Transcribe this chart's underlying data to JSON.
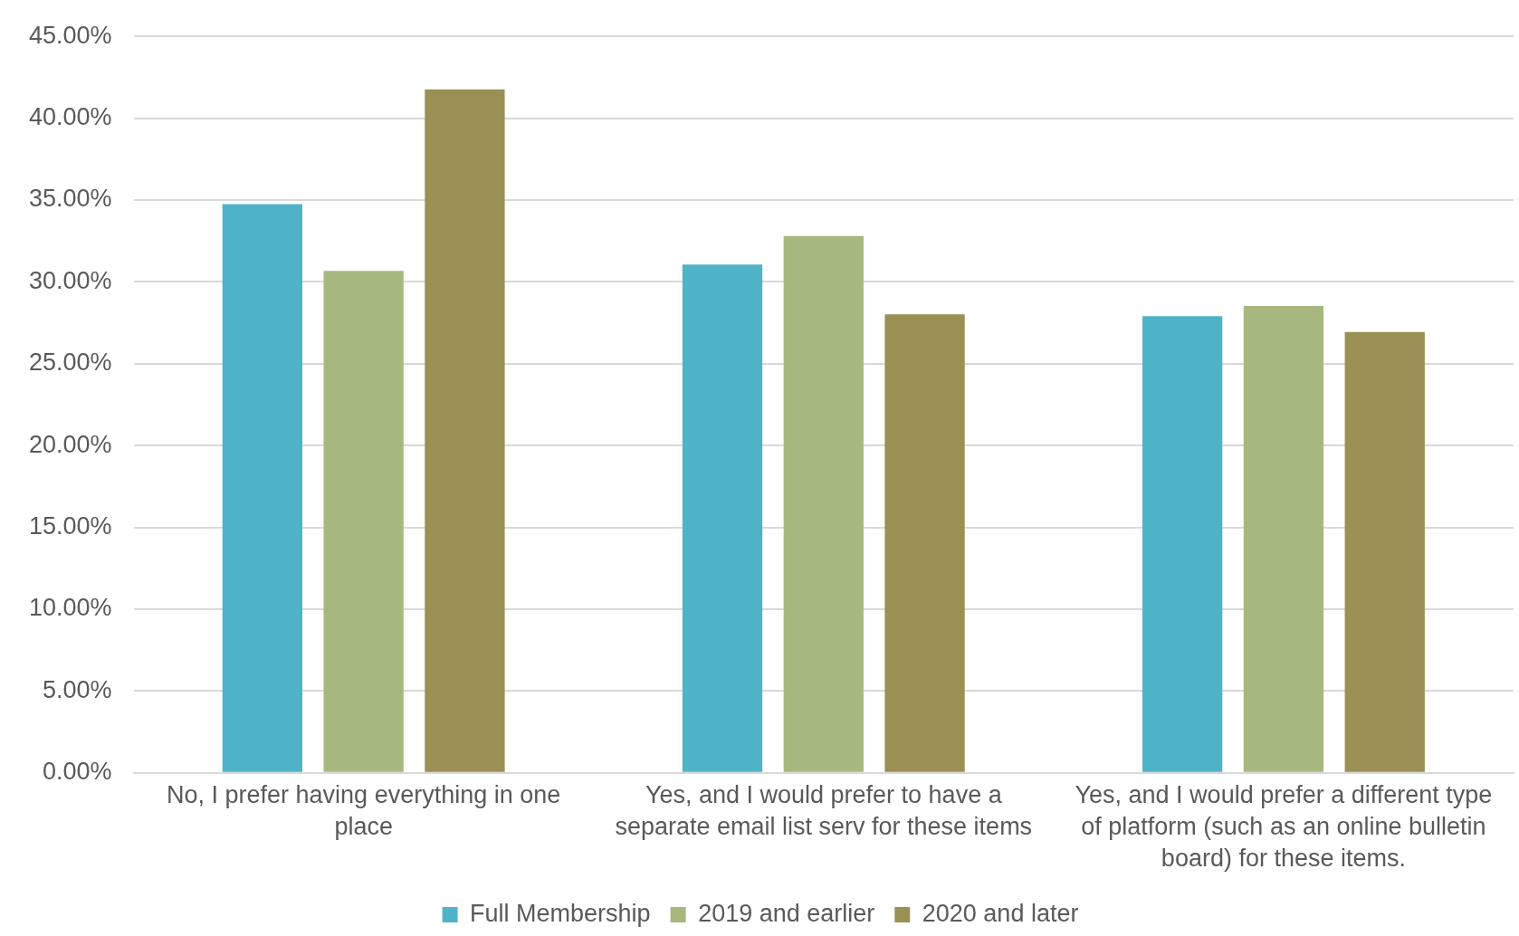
{
  "chart_data": {
    "type": "bar",
    "categories": [
      "No, I prefer having everything in one place",
      "Yes, and I would prefer to have a separate email list serv for these items",
      "Yes, and I would prefer a different type of platform (such as an online bulletin board) for these items."
    ],
    "series": [
      {
        "name": "Full Membership",
        "color": "#4fb3c8",
        "values": [
          34.75,
          31.06,
          27.91
        ]
      },
      {
        "name": "2019 and earlier",
        "color": "#a7b87e",
        "values": [
          30.67,
          32.8,
          28.52
        ]
      },
      {
        "name": "2020 and later",
        "color": "#9a9054",
        "values": [
          41.76,
          28.02,
          26.93
        ]
      }
    ],
    "ylim": [
      0,
      45
    ],
    "yticks": [
      {
        "value": 0,
        "label": "0.00%"
      },
      {
        "value": 5,
        "label": "5.00%"
      },
      {
        "value": 10,
        "label": "10.00%"
      },
      {
        "value": 15,
        "label": "15.00%"
      },
      {
        "value": 20,
        "label": "20.00%"
      },
      {
        "value": 25,
        "label": "25.00%"
      },
      {
        "value": 30,
        "label": "30.00%"
      },
      {
        "value": 35,
        "label": "35.00%"
      },
      {
        "value": 40,
        "label": "40.00%"
      },
      {
        "value": 45,
        "label": "45.00%"
      }
    ],
    "grid": "y",
    "legend": "bottom"
  }
}
